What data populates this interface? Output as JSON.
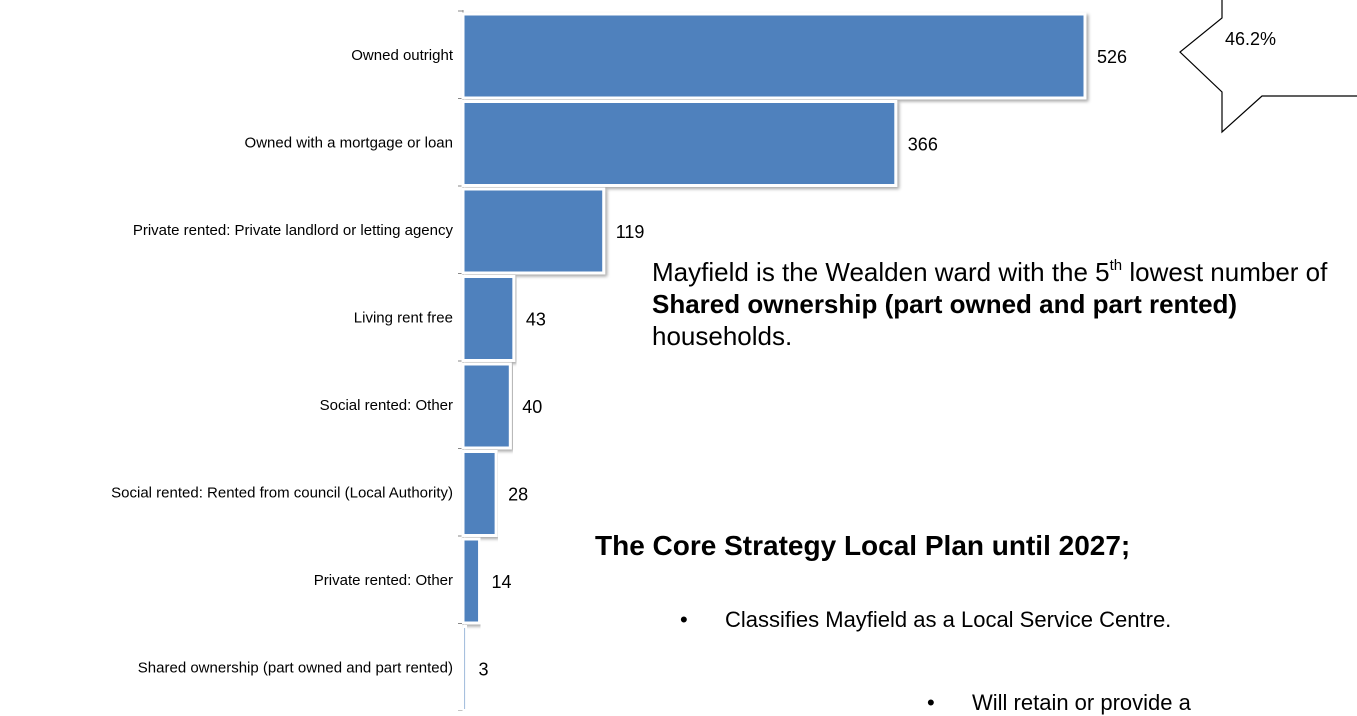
{
  "chart_data": {
    "type": "bar",
    "orientation": "horizontal",
    "categories": [
      "Owned outright",
      "Owned with a mortgage or loan",
      "Private rented: Private landlord or letting agency",
      "Living rent free",
      "Social rented: Other",
      "Social rented: Rented from council (Local Authority)",
      "Private rented: Other",
      "Shared ownership (part owned and part rented)"
    ],
    "values": [
      526,
      366,
      119,
      43,
      40,
      28,
      14,
      3
    ],
    "color": "#4f81bd",
    "callout": "46.2%"
  },
  "text": {
    "statement": [
      "Mayfield is the Wealden ward with the 5",
      "th",
      " lowest number of ",
      "Shared ownership (part owned and part rented)",
      " households."
    ],
    "heading": "The Core Strategy Local Plan until 2027;",
    "bullets": [
      "Classifies Mayfield as a Local Service Centre.",
      "Will retain or provide a"
    ]
  }
}
